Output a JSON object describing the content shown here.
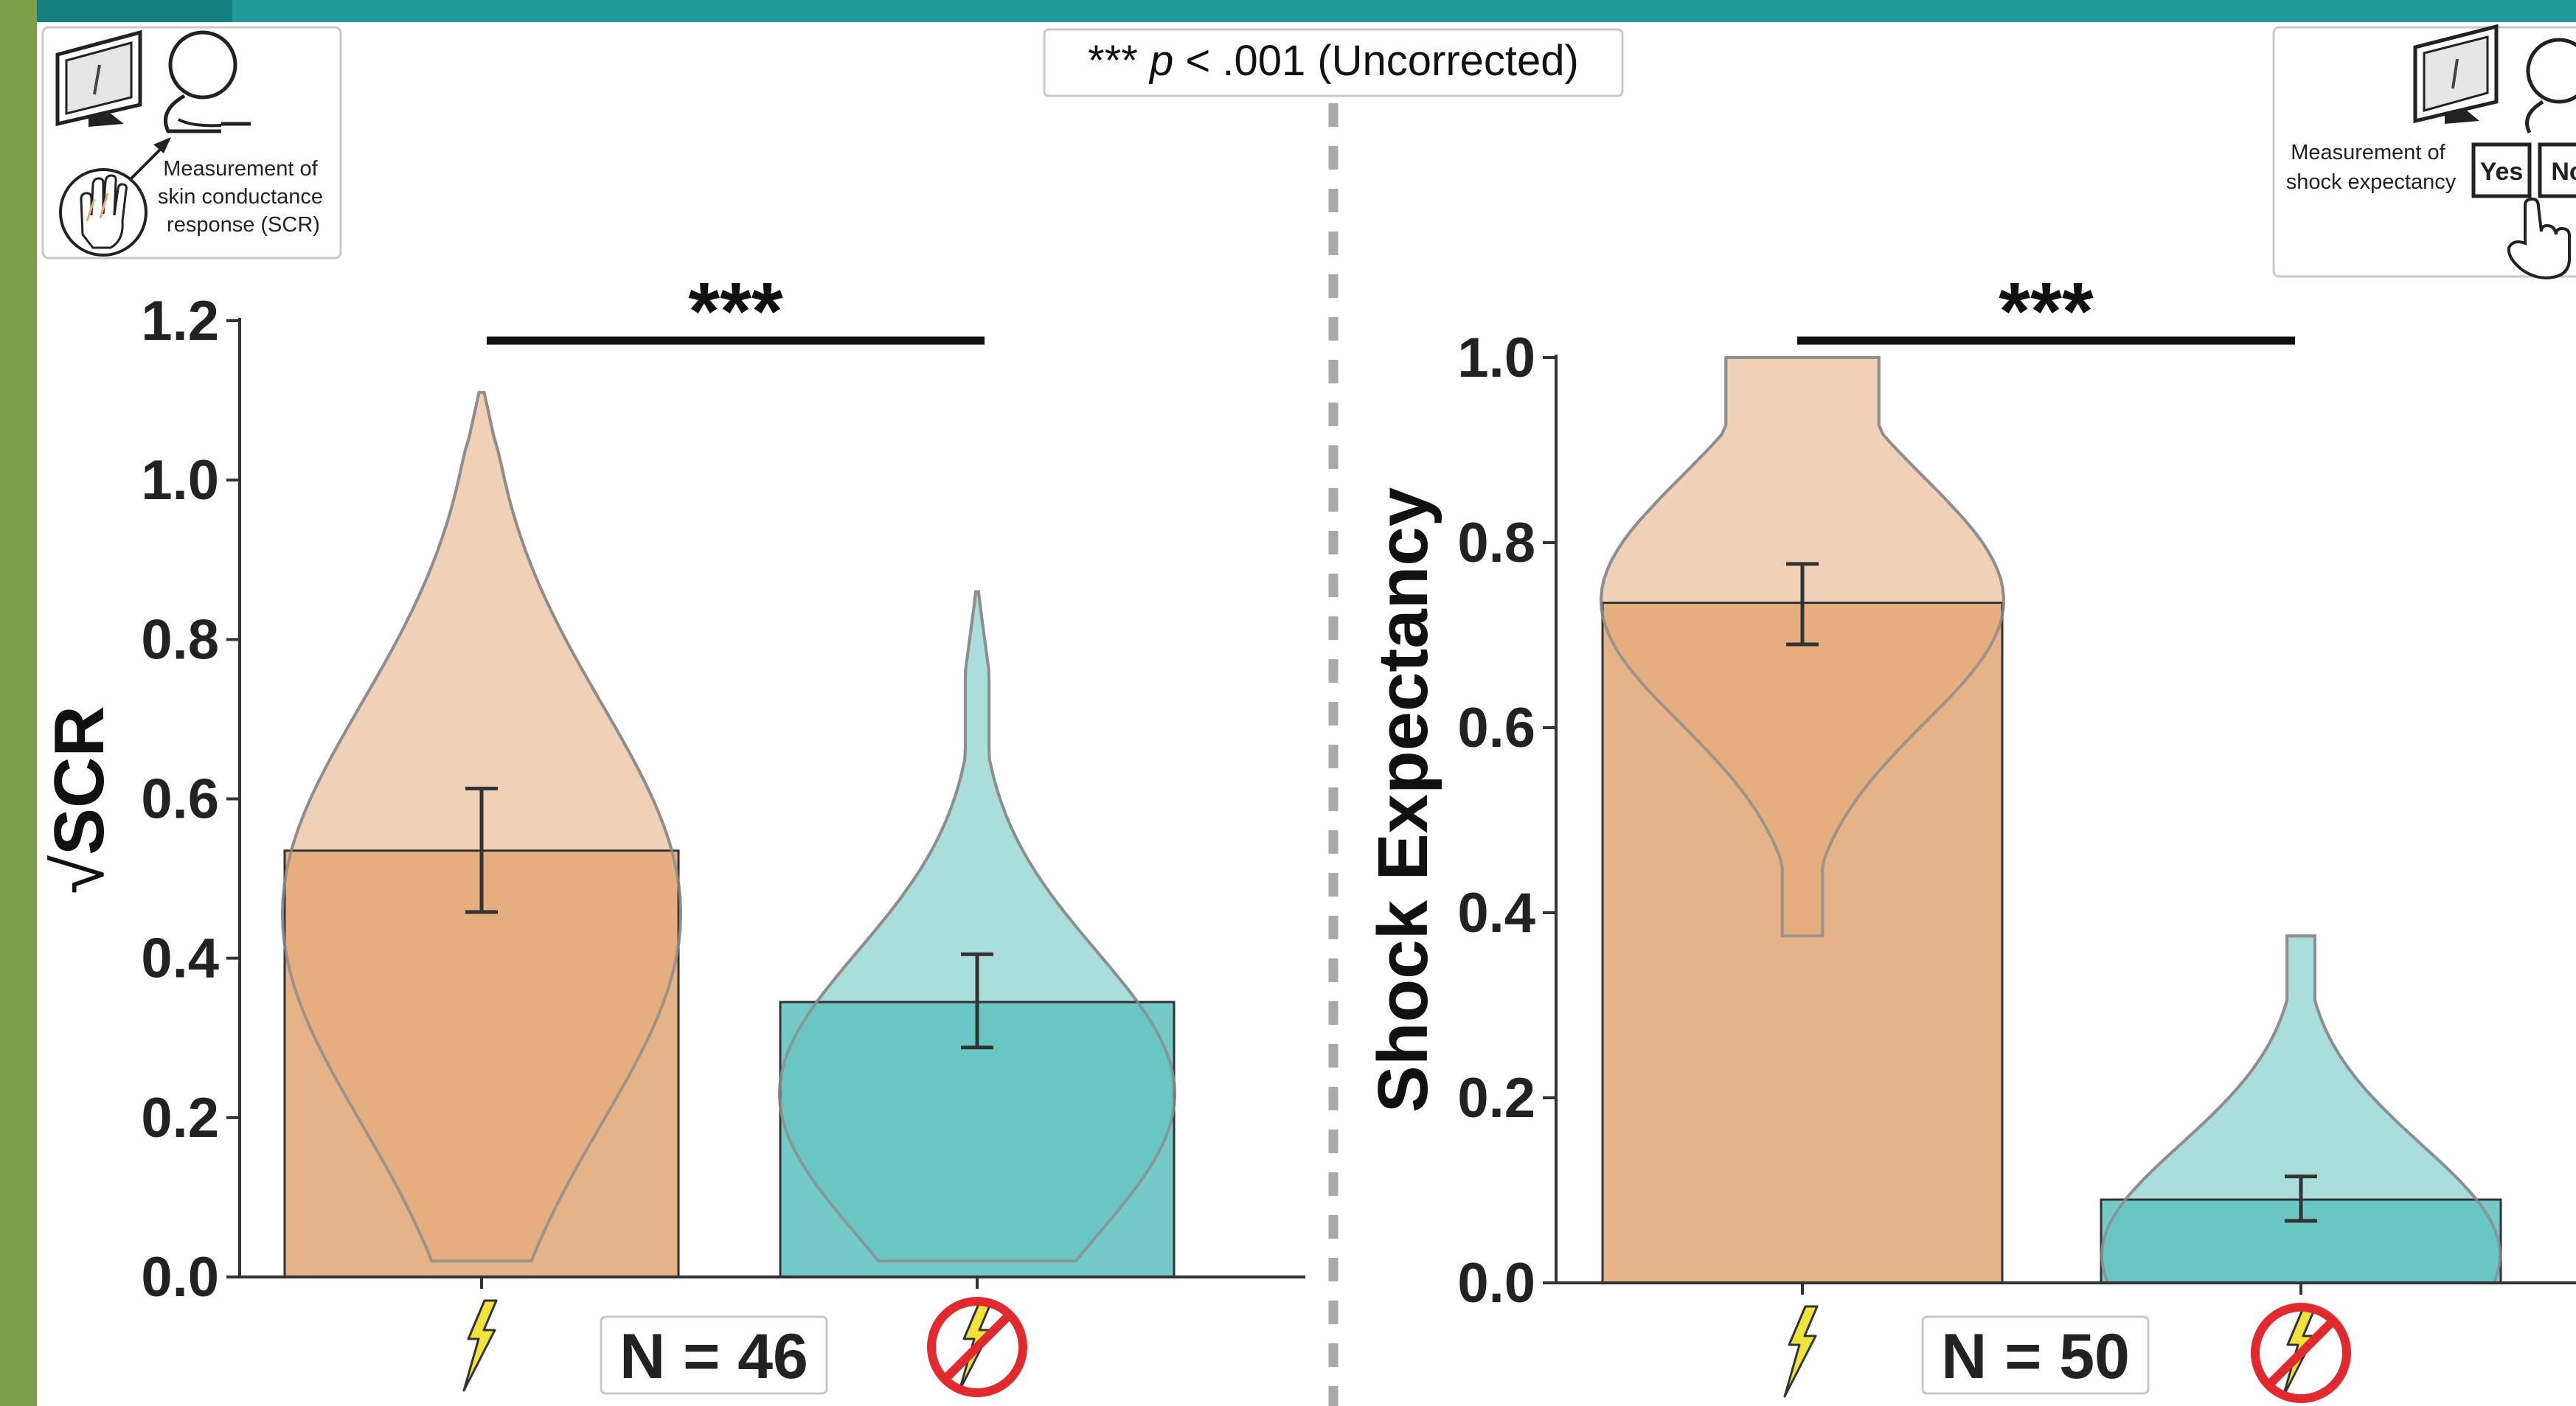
{
  "header": {
    "significance_note_stars": "***",
    "significance_note_p": "p",
    "significance_note_rest": " < .001 (Uncorrected)"
  },
  "colors": {
    "cs_plus": "#E3A877",
    "cs_plus_light": "#F0D0B6",
    "cs_minus": "#61C3BF",
    "cs_minus_light": "#A9DEDC",
    "accent_bar": "#20999B",
    "side_bar": "#7BA049",
    "bolt": "#F2E33B",
    "no_sign": "#E02A2E"
  },
  "left_panel": {
    "inset_label_lines": [
      "Measurement of",
      "skin conductance",
      "response (SCR)"
    ],
    "inset_icons": [
      "monitor-icon",
      "person-icon",
      "hand-electrode-icon"
    ],
    "n_label": "N = 46"
  },
  "right_panel": {
    "inset_label_lines": [
      "Measurement of",
      "shock expectancy"
    ],
    "inset_icons": [
      "monitor-icon",
      "person-icon",
      "pointer-hand-icon"
    ],
    "yes_button": "Yes",
    "no_button": "No",
    "n_label": "N = 50"
  },
  "chart_data": [
    {
      "type": "bar",
      "categories": [
        "shock-icon",
        "no-shock-icon"
      ],
      "values": [
        0.535,
        0.345
      ],
      "error_low": [
        0.458,
        0.288
      ],
      "error_high": [
        0.613,
        0.405
      ],
      "violin_range": [
        [
          0.02,
          1.11
        ],
        [
          0.02,
          0.86
        ]
      ],
      "ylabel": "SCR",
      "ylabel_prefix": "√",
      "ylim": [
        0,
        1.2
      ],
      "yticks": [
        "0.0",
        "0.2",
        "0.4",
        "0.6",
        "0.8",
        "1.0",
        "1.2"
      ],
      "significance": "***",
      "grid": false,
      "legend": "none"
    },
    {
      "type": "bar",
      "categories": [
        "shock-icon",
        "no-shock-icon"
      ],
      "values": [
        0.735,
        0.09
      ],
      "error_low": [
        0.69,
        0.067
      ],
      "error_high": [
        0.777,
        0.115
      ],
      "violin_range": [
        [
          0.375,
          1.0
        ],
        [
          0.0,
          0.375
        ]
      ],
      "ylabel": "Shock Expectancy",
      "ylim": [
        0,
        1.0
      ],
      "yticks": [
        "0.0",
        "0.2",
        "0.4",
        "0.6",
        "0.8",
        "1.0"
      ],
      "significance": "***",
      "grid": false,
      "legend": "none"
    }
  ]
}
